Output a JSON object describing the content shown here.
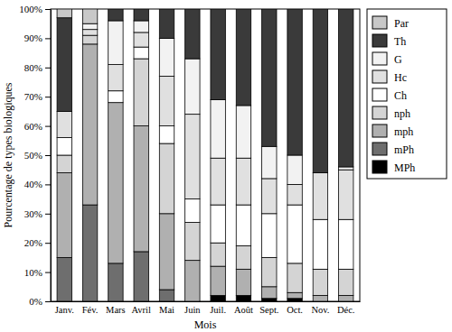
{
  "chart_data": {
    "type": "bar",
    "stacked": true,
    "x_label": "Mois",
    "y_label": "Pourcentage de types biologiques",
    "categories": [
      "Janv.",
      "Fév.",
      "Mars",
      "Avril",
      "Mai",
      "Juin",
      "Juil.",
      "Août",
      "Sept.",
      "Oct.",
      "Nov.",
      "Déc."
    ],
    "ylim": [
      0,
      100
    ],
    "yticks": [
      {
        "value": 0,
        "label": "0%"
      },
      {
        "value": 10,
        "label": "10%"
      },
      {
        "value": 20,
        "label": "20%"
      },
      {
        "value": 30,
        "label": "30%"
      },
      {
        "value": 40,
        "label": "40%"
      },
      {
        "value": 50,
        "label": "50%"
      },
      {
        "value": 60,
        "label": "60%"
      },
      {
        "value": 70,
        "label": "70%"
      },
      {
        "value": 80,
        "label": "80%"
      },
      {
        "value": 90,
        "label": "90%"
      },
      {
        "value": 100,
        "label": "100%"
      }
    ],
    "grid": false,
    "legend": "right",
    "series": [
      {
        "name": "Par",
        "color": "#c8c8c8",
        "values": [
          3,
          5,
          0,
          0,
          0,
          0,
          0,
          0,
          0,
          0,
          0,
          0
        ]
      },
      {
        "name": "Th",
        "color": "#3a3a3a",
        "values": [
          32,
          0,
          4,
          4,
          10,
          17,
          31,
          33,
          47,
          50,
          56,
          54
        ]
      },
      {
        "name": "G",
        "color": "#f2f2f2",
        "values": [
          0,
          2,
          15,
          4,
          13,
          19,
          20,
          18,
          11,
          10,
          0,
          1
        ]
      },
      {
        "name": "Hc",
        "color": "#e0e0e0",
        "values": [
          9,
          2,
          9,
          5,
          17,
          29,
          16,
          16,
          12,
          7,
          16,
          17
        ]
      },
      {
        "name": "Ch",
        "color": "#ffffff",
        "values": [
          6,
          0,
          4,
          4,
          6,
          8,
          13,
          14,
          15,
          20,
          17,
          17
        ]
      },
      {
        "name": "nph",
        "color": "#d4d4d4",
        "values": [
          6,
          3,
          0,
          23,
          24,
          13,
          8,
          8,
          10,
          10,
          9,
          9
        ]
      },
      {
        "name": "mph",
        "color": "#b0b0b0",
        "values": [
          29,
          55,
          55,
          43,
          26,
          14,
          10,
          9,
          4,
          2,
          2,
          2
        ]
      },
      {
        "name": "mPh",
        "color": "#6e6e6e",
        "values": [
          15,
          33,
          13,
          17,
          4,
          0,
          0,
          0,
          0,
          0,
          0,
          0
        ]
      },
      {
        "name": "MPh",
        "color": "#000000",
        "values": [
          0,
          0,
          0,
          0,
          0,
          0,
          2,
          2,
          1,
          1,
          0,
          0
        ]
      }
    ]
  }
}
